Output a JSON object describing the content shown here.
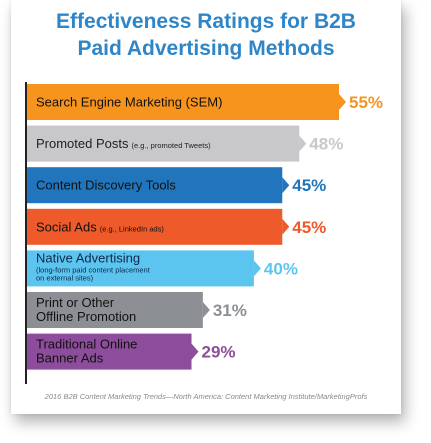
{
  "title_line1": "Effectiveness Ratings for B2B",
  "title_line2": "Paid Advertising Methods",
  "source": "2016 B2B Content Marketing Trends—North America: Content Marketing Institute/MarketingProfs",
  "chart_data": {
    "type": "bar",
    "orientation": "horizontal",
    "title": "Effectiveness Ratings for B2B Paid Advertising Methods",
    "categories": [
      {
        "label": "Search Engine Marketing (SEM)",
        "note": "",
        "value": 55,
        "display": "55%",
        "color": "#f7941d"
      },
      {
        "label": "Promoted Posts",
        "note": "(e.g., promoted Tweets)",
        "value": 48,
        "display": "48%",
        "color": "#c8c8ca"
      },
      {
        "label": "Content Discovery Tools",
        "note": "",
        "value": 45,
        "display": "45%",
        "color": "#2075bc"
      },
      {
        "label": "Social Ads",
        "note": "(e.g., LinkedIn ads)",
        "value": 45,
        "display": "45%",
        "color": "#ee5a2a"
      },
      {
        "label": "Native Advertising",
        "note": "(long-form paid content placement|on external sites)",
        "value": 40,
        "display": "40%",
        "color": "#5bc5f0"
      },
      {
        "label": "Print or Other|Offline Promotion",
        "note": "",
        "value": 31,
        "display": "31%",
        "color": "#8c9095"
      },
      {
        "label": "Traditional Online|Banner Ads",
        "note": "",
        "value": 29,
        "display": "29%",
        "color": "#8e4d9c"
      }
    ],
    "xlim": [
      0,
      55
    ],
    "grid": false,
    "legend": "none"
  }
}
